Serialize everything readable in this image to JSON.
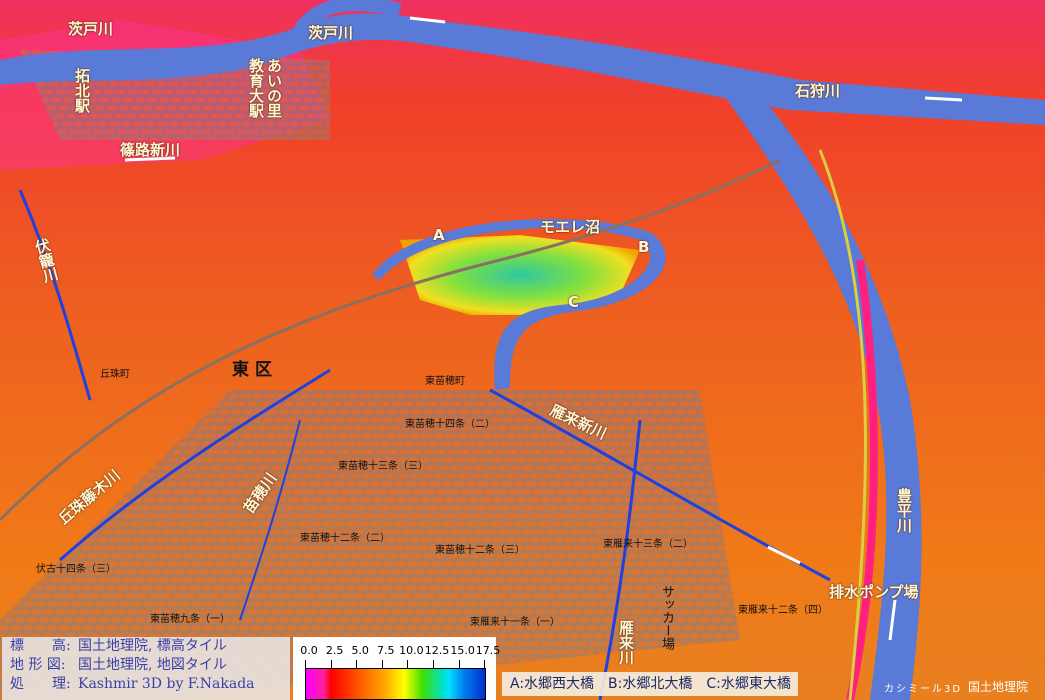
{
  "map": {
    "river_labels": {
      "barato_1": "茨戸川",
      "barato_2": "茨戸川",
      "ishikari": "石狩川",
      "shinoro_shinkawa": "篠路新川",
      "fushiko": "伏籠川",
      "moere_numa": "モエレ沼",
      "karikishinkawa": "雁来新川",
      "okadama_fujiki": "丘珠藤木川",
      "naebo": "苗穂川",
      "toyohira": "豊平川",
      "pump": "排水ポンプ場",
      "kariki": "雁来川"
    },
    "station_labels": {
      "takuhoku": "拓北駅",
      "kyoikudai": "教育大駅",
      "ainosato": "あいの里"
    },
    "bridge_markers": {
      "a": "A",
      "b": "B",
      "c": "C"
    },
    "base_map_labels": {
      "higashi_ku": "東区",
      "soccer": "サッカー場",
      "l1": "東苗穂十四条（二）",
      "l2": "東苗穂十三条（三）",
      "l3": "東苗穂十二条（二）",
      "l4": "東苗穂十二条（三）",
      "l5": "東雁来十三条（二）",
      "l6": "東雁来十二条（四）",
      "l7": "伏古十四条（三）",
      "l8": "東苗穂九条（一）",
      "l9": "東雁来十一条（一）",
      "l10": "東苗穂町",
      "l11": "丘珠町"
    }
  },
  "credits": {
    "elevation_key": "標　　高:",
    "elevation_val": "国土地理院, 標高タイル",
    "terrain_key": "地 形 図:",
    "terrain_val": "国土地理院, 地図タイル",
    "process_key": "処　　理:",
    "process_val": "Kashmir 3D by F.Nakada"
  },
  "legend": {
    "ticks": [
      "0.0",
      "2.5",
      "5.0",
      "7.5",
      "10.0",
      "12.5",
      "15.0",
      "17.5"
    ],
    "colors": [
      "#ff00ff",
      "#ff0000",
      "#ff8000",
      "#ffff00",
      "#40e000",
      "#00e0ff",
      "#0030d0"
    ]
  },
  "bridges_note": "A:水郷西大橋　B:水郷北大橋　C:水郷東大橋",
  "watermark": {
    "kashmir": "カシミール3D",
    "gsi": "国土地理院"
  }
}
